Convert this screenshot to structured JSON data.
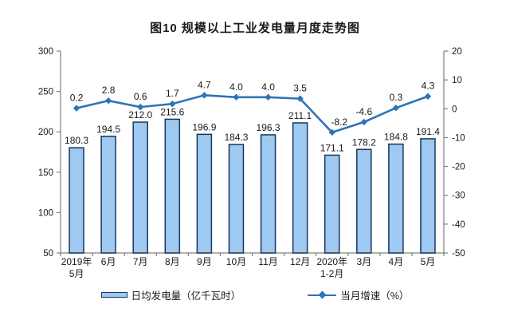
{
  "page": {
    "title": "图10 规模以上工业发电量月度走势图"
  },
  "chart_data": {
    "type": "bar+line",
    "title": "图10 规模以上工业发电量月度走势图",
    "categories": [
      [
        "2019年",
        "5月"
      ],
      [
        "6月"
      ],
      [
        "7月"
      ],
      [
        "8月"
      ],
      [
        "9月"
      ],
      [
        "10月"
      ],
      [
        "11月"
      ],
      [
        "12月"
      ],
      [
        "2020年",
        "1-2月"
      ],
      [
        "3月"
      ],
      [
        "4月"
      ],
      [
        "5月"
      ]
    ],
    "series": [
      {
        "name": "日均发电量（亿千瓦时）",
        "type": "bar",
        "axis": "left",
        "values": [
          180.3,
          194.5,
          212.0,
          215.6,
          196.9,
          184.3,
          196.3,
          211.1,
          171.1,
          178.2,
          184.8,
          191.4
        ]
      },
      {
        "name": "当月增速（%）",
        "type": "line",
        "axis": "right",
        "values": [
          0.2,
          2.8,
          0.6,
          1.7,
          4.7,
          4.0,
          4.0,
          3.5,
          -8.2,
          -4.6,
          0.3,
          4.3
        ]
      }
    ],
    "left_axis": {
      "min": 50,
      "max": 300,
      "ticks": [
        300,
        250,
        200,
        150,
        100,
        50
      ]
    },
    "right_axis": {
      "min": -50,
      "max": 20,
      "ticks": [
        20,
        10,
        0,
        -10,
        -20,
        -30,
        -40,
        -50
      ]
    },
    "grid": false,
    "legend_position": "bottom",
    "colors": {
      "bar_fill": "#9FC9F1",
      "bar_border": "#17375E",
      "line": "#2E75B6",
      "axis": "#808080",
      "text": "#1A1A1A"
    }
  },
  "legend": {
    "bar_label": "日均发电量（亿千瓦时）",
    "line_label": "当月增速（%）"
  }
}
